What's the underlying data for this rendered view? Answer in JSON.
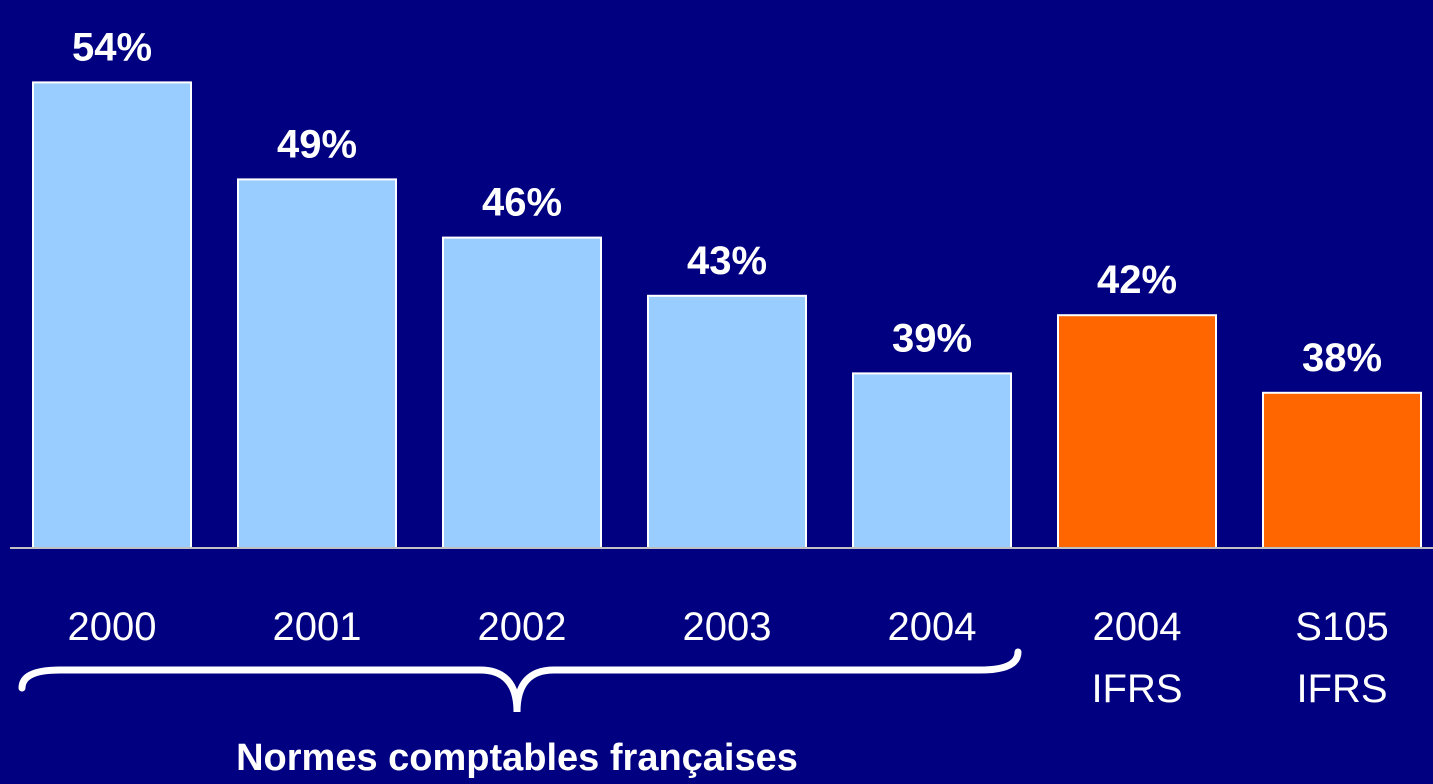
{
  "chart_data": {
    "type": "bar",
    "categories": [
      "2000",
      "2001",
      "2002",
      "2003",
      "2004",
      "2004 IFRS",
      "S105 IFRS"
    ],
    "values": [
      54,
      49,
      46,
      43,
      39,
      42,
      38
    ],
    "value_labels": [
      "54%",
      "49%",
      "46%",
      "43%",
      "39%",
      "42%",
      "38%"
    ],
    "colors": [
      "#99ccff",
      "#99ccff",
      "#99ccff",
      "#99ccff",
      "#99ccff",
      "#ff6600",
      "#ff6600"
    ],
    "ylim": [
      30,
      55
    ],
    "annotation": "Normes comptables françaises"
  }
}
